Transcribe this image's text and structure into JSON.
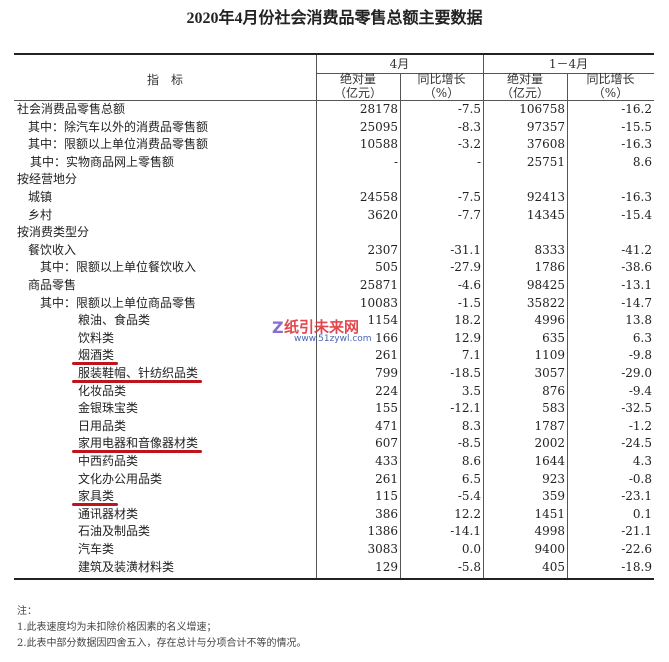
{
  "title": "2020年4月份社会消费品零售总额主要数据",
  "header": {
    "indicator": "指　标",
    "period_april": "4月",
    "period_jan_apr": "1－4月",
    "abs_label": "绝对量",
    "abs_unit": "（亿元）",
    "yoy_label": "同比增长",
    "yoy_unit": "（%）"
  },
  "rows": [
    {
      "label": "社会消费品零售总额",
      "indent": 0,
      "apr": "28178",
      "apr_yoy": "-7.5",
      "ytd": "106758",
      "ytd_yoy": "-16.2"
    },
    {
      "label": "其中：除汽车以外的消费品零售额",
      "indent": 1,
      "apr": "25095",
      "apr_yoy": "-8.3",
      "ytd": "97357",
      "ytd_yoy": "-15.5"
    },
    {
      "label": "其中：限额以上单位消费品零售额",
      "indent": 1,
      "apr": "10588",
      "apr_yoy": "-3.2",
      "ytd": "37608",
      "ytd_yoy": "-16.3"
    },
    {
      "label": "其中：实物商品网上零售额",
      "indent": 1.2,
      "apr": "-",
      "apr_yoy": "-",
      "ytd": "25751",
      "ytd_yoy": "8.6"
    },
    {
      "label": "按经营地分",
      "indent": 0,
      "apr": "",
      "apr_yoy": "",
      "ytd": "",
      "ytd_yoy": ""
    },
    {
      "label": "城镇",
      "indent": 1,
      "apr": "24558",
      "apr_yoy": "-7.5",
      "ytd": "92413",
      "ytd_yoy": "-16.3"
    },
    {
      "label": "乡村",
      "indent": 1,
      "apr": "3620",
      "apr_yoy": "-7.7",
      "ytd": "14345",
      "ytd_yoy": "-15.4"
    },
    {
      "label": "按消费类型分",
      "indent": 0,
      "apr": "",
      "apr_yoy": "",
      "ytd": "",
      "ytd_yoy": ""
    },
    {
      "label": "餐饮收入",
      "indent": 1,
      "apr": "2307",
      "apr_yoy": "-31.1",
      "ytd": "8333",
      "ytd_yoy": "-41.2"
    },
    {
      "label": "其中：限额以上单位餐饮收入",
      "indent": 2,
      "apr": "505",
      "apr_yoy": "-27.9",
      "ytd": "1786",
      "ytd_yoy": "-38.6"
    },
    {
      "label": "商品零售",
      "indent": 1,
      "apr": "25871",
      "apr_yoy": "-4.6",
      "ytd": "98425",
      "ytd_yoy": "-13.1"
    },
    {
      "label": "其中：限额以上单位商品零售",
      "indent": 2,
      "apr": "10083",
      "apr_yoy": "-1.5",
      "ytd": "35822",
      "ytd_yoy": "-14.7"
    },
    {
      "label": "粮油、食品类",
      "indent": 3,
      "apr": "1154",
      "apr_yoy": "18.2",
      "ytd": "4996",
      "ytd_yoy": "13.8"
    },
    {
      "label": "饮料类",
      "indent": 3,
      "apr": "166",
      "apr_yoy": "12.9",
      "ytd": "635",
      "ytd_yoy": "6.3"
    },
    {
      "label": "烟酒类",
      "indent": 3,
      "apr": "261",
      "apr_yoy": "7.1",
      "ytd": "1109",
      "ytd_yoy": "-9.8",
      "underline": true
    },
    {
      "label": "服装鞋帽、针纺织品类",
      "indent": 3,
      "apr": "799",
      "apr_yoy": "-18.5",
      "ytd": "3057",
      "ytd_yoy": "-29.0",
      "underline": true
    },
    {
      "label": "化妆品类",
      "indent": 3,
      "apr": "224",
      "apr_yoy": "3.5",
      "ytd": "876",
      "ytd_yoy": "-9.4"
    },
    {
      "label": "金银珠宝类",
      "indent": 3,
      "apr": "155",
      "apr_yoy": "-12.1",
      "ytd": "583",
      "ytd_yoy": "-32.5"
    },
    {
      "label": "日用品类",
      "indent": 3,
      "apr": "471",
      "apr_yoy": "8.3",
      "ytd": "1787",
      "ytd_yoy": "-1.2"
    },
    {
      "label": "家用电器和音像器材类",
      "indent": 3,
      "apr": "607",
      "apr_yoy": "-8.5",
      "ytd": "2002",
      "ytd_yoy": "-24.5",
      "underline": true
    },
    {
      "label": "中西药品类",
      "indent": 3,
      "apr": "433",
      "apr_yoy": "8.6",
      "ytd": "1644",
      "ytd_yoy": "4.3"
    },
    {
      "label": "文化办公用品类",
      "indent": 3,
      "apr": "261",
      "apr_yoy": "6.5",
      "ytd": "923",
      "ytd_yoy": "-0.8"
    },
    {
      "label": "家具类",
      "indent": 3,
      "apr": "115",
      "apr_yoy": "-5.4",
      "ytd": "359",
      "ytd_yoy": "-23.1",
      "underline": true
    },
    {
      "label": "通讯器材类",
      "indent": 3,
      "apr": "386",
      "apr_yoy": "12.2",
      "ytd": "1451",
      "ytd_yoy": "0.1"
    },
    {
      "label": "石油及制品类",
      "indent": 3,
      "apr": "1386",
      "apr_yoy": "-14.1",
      "ytd": "4998",
      "ytd_yoy": "-21.1"
    },
    {
      "label": "汽车类",
      "indent": 3,
      "apr": "3083",
      "apr_yoy": "0.0",
      "ytd": "9400",
      "ytd_yoy": "-22.6"
    },
    {
      "label": "建筑及装潢材料类",
      "indent": 3,
      "apr": "129",
      "apr_yoy": "-5.8",
      "ytd": "405",
      "ytd_yoy": "-18.9"
    }
  ],
  "notes": {
    "heading": "注：",
    "items": [
      "1.此表速度均为未扣除价格因素的名义增速；",
      "2.此表中部分数据因四舍五入，存在总计与分项合计不等的情况。"
    ]
  },
  "watermark": {
    "name": "纸引未来网",
    "url": "www.51zywl.com"
  },
  "colors": {
    "underline": "#c0141c"
  }
}
